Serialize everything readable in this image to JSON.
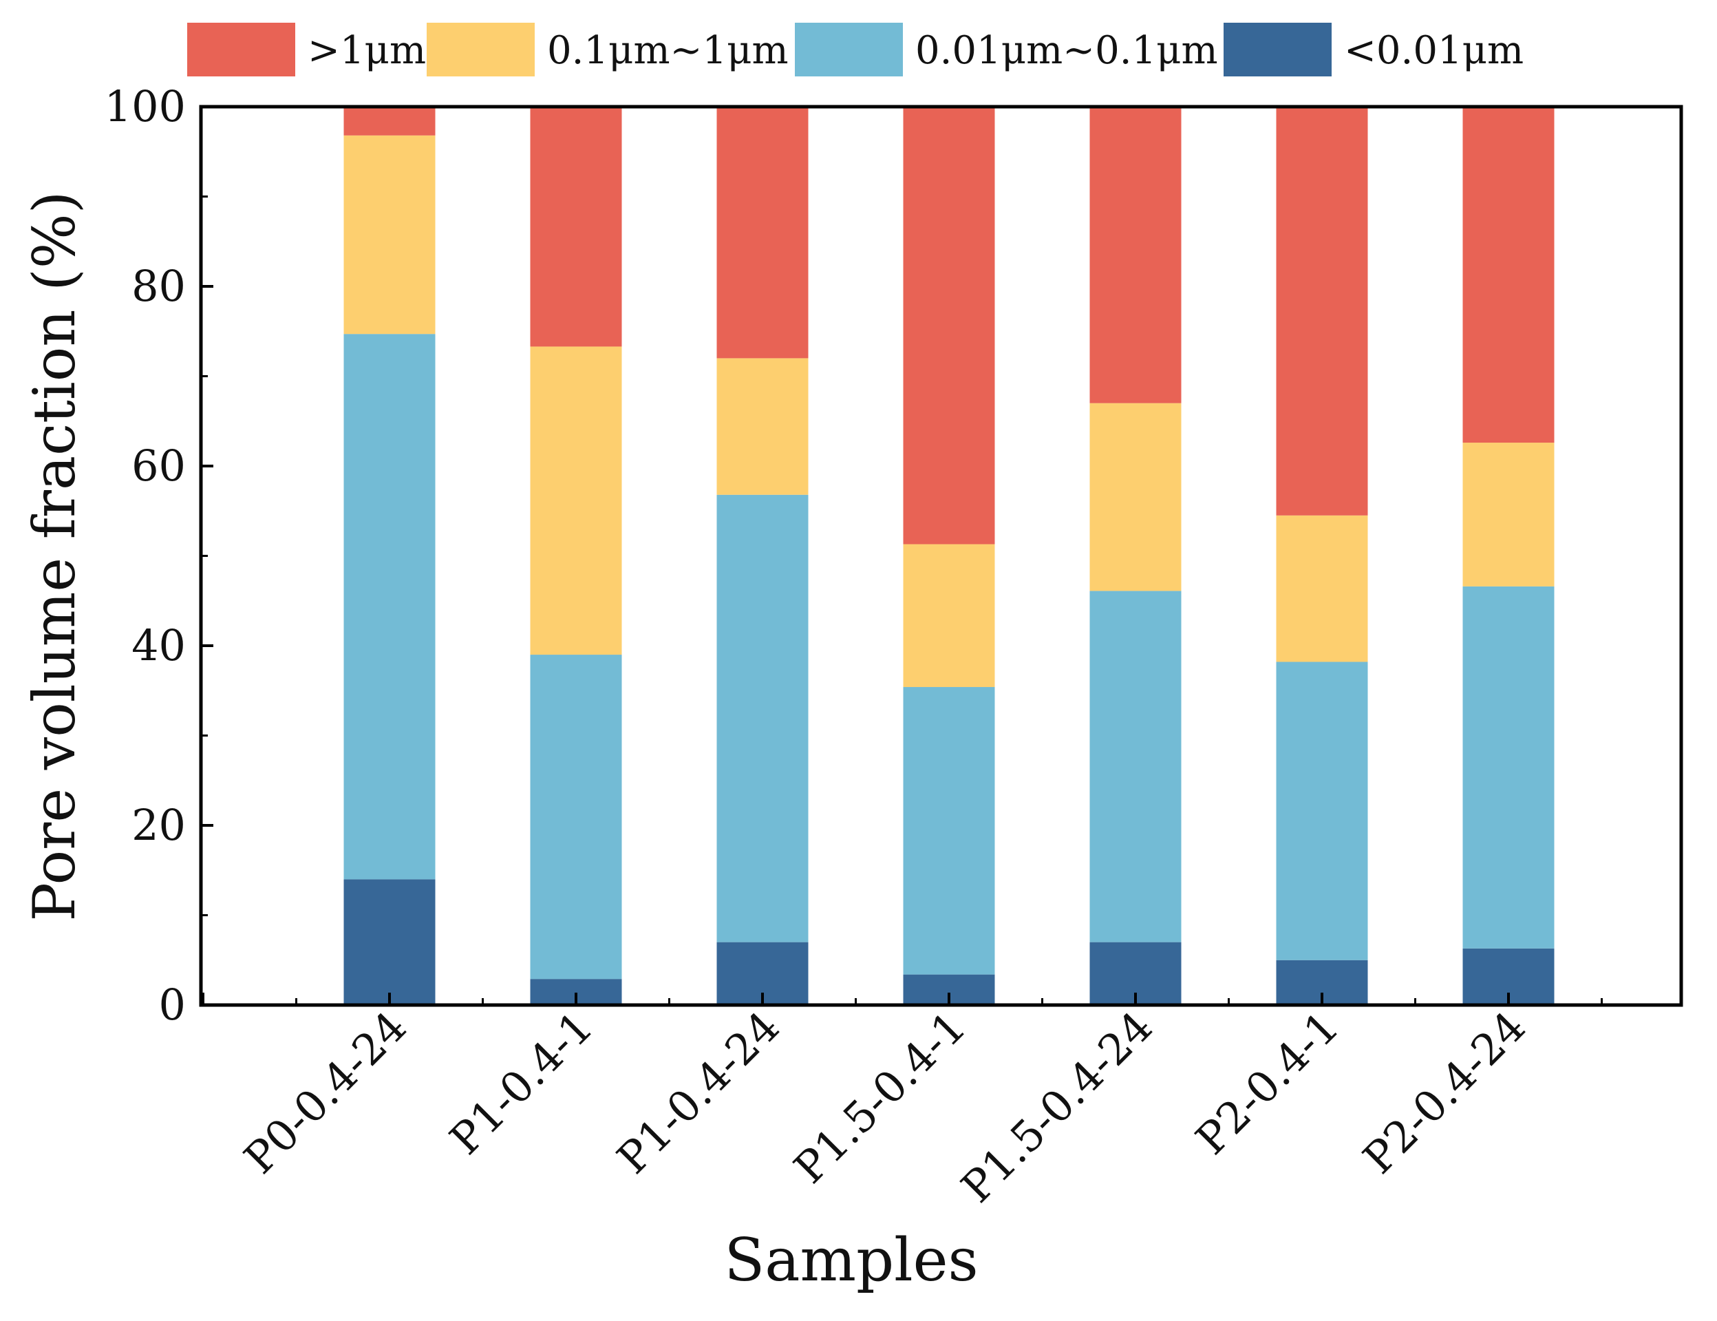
{
  "chart_data": {
    "type": "bar",
    "stacked": true,
    "title": "",
    "xlabel": "Samples",
    "ylabel": "Pore volume fraction (%)",
    "ylim": [
      0,
      100
    ],
    "yticks": [
      "0",
      "20",
      "40",
      "60",
      "80",
      "100"
    ],
    "categories": [
      "P0-0.4-24",
      "P1-0.4-1",
      "P1-0.4-24",
      "P1.5-0.4-1",
      "P1.5-0.4-24",
      "P2-0.4-1",
      "P2-0.4-24"
    ],
    "legend_position": "top",
    "series": [
      {
        "name": "<0.01μm",
        "color": "#376797",
        "values": [
          14.0,
          2.9,
          7.0,
          3.4,
          7.0,
          5.0,
          6.3
        ]
      },
      {
        "name": "0.01μm~0.1μm",
        "color": "#73bbd5",
        "values": [
          60.7,
          36.1,
          49.8,
          32.0,
          39.1,
          33.2,
          40.3
        ]
      },
      {
        "name": "0.1μm~1μm",
        "color": "#fdcf6f",
        "values": [
          22.1,
          34.3,
          15.2,
          15.9,
          20.9,
          16.3,
          16.0
        ]
      },
      {
        "name": ">1μm",
        "color": "#e86355",
        "values": [
          3.2,
          26.7,
          28.0,
          48.7,
          33.0,
          45.5,
          37.4
        ]
      }
    ],
    "legend_order": [
      ">1μm",
      "0.1μm~1μm",
      "0.01μm~0.1μm",
      "<0.01μm"
    ]
  }
}
